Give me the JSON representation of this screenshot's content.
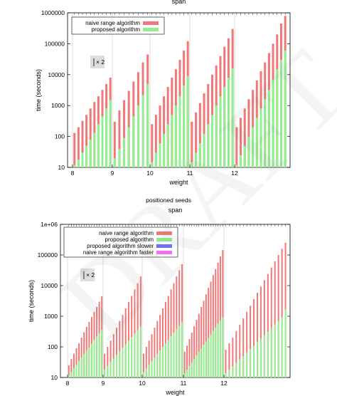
{
  "chart_data": [
    {
      "type": "bar",
      "title": "",
      "top_label": "span",
      "xlabel": "weight",
      "ylabel": "time (seconds)",
      "yscale": "log",
      "ylim": [
        10,
        1000000
      ],
      "yticks": [
        "10",
        "100",
        "1000",
        "10000",
        "100000",
        "1000000"
      ],
      "x_groups": [
        "8",
        "9",
        "10",
        "11",
        "12"
      ],
      "legend": {
        "placement": "top-left"
      },
      "annotation": "× 2",
      "series": [
        {
          "name": "naive range algorithm",
          "color": "#f07878",
          "groups": [
            [
              130,
              200,
              320,
              500,
              800,
              1300,
              2000,
              3200,
              5000,
              8000
            ],
            [
              300,
              700,
              1500,
              3000,
              6000,
              12000,
              25000,
              45000
            ],
            [
              250,
              500,
              1000,
              2000,
              4000,
              8000,
              15000,
              30000,
              60000,
              120000
            ],
            [
              300,
              600,
              1200,
              2500,
              5000,
              10000,
              20000,
              40000,
              80000,
              150000,
              300000
            ],
            [
              200,
              400,
              800,
              1600,
              3200,
              6500,
              13000,
              25000,
              50000,
              100000,
              200000,
              450000,
              800000
            ]
          ]
        },
        {
          "name": "proposed algorithm",
          "color": "#90f090",
          "groups": [
            [
              12,
              18,
              30,
              50,
              80,
              130,
              250,
              450,
              800,
              1500
            ],
            [
              20,
              40,
              90,
              200,
              450,
              1000,
              2200,
              5000
            ],
            [
              15,
              30,
              60,
              120,
              250,
              500,
              1000,
              2000,
              4500,
              9000
            ],
            [
              15,
              30,
              60,
              120,
              250,
              500,
              1000,
              2000,
              4000,
              8000,
              16000
            ],
            [
              12,
              25,
              50,
              100,
              200,
              400,
              800,
              1600,
              3200,
              7000,
              15000,
              30000,
              60000
            ]
          ]
        }
      ]
    },
    {
      "type": "bar",
      "title": "positioned seeds",
      "top_label": "span",
      "xlabel": "weight",
      "ylabel": "time (seconds)",
      "yscale": "log",
      "ylim": [
        10,
        1000000
      ],
      "yticks": [
        "10",
        "100",
        "1000",
        "10000",
        "100000",
        "1e+06"
      ],
      "x_groups": [
        "8",
        "9",
        "10",
        "11",
        "12"
      ],
      "legend": {
        "placement": "top-left"
      },
      "annotation": "× 2",
      "series": [
        {
          "name": "naive range algorithm",
          "color": "#f07878",
          "groups": [
            [
              25,
              40,
              60,
              90,
              130,
              200,
              300,
              450,
              650,
              950,
              1400,
              2000,
              3000,
              4500
            ],
            [
              60,
              100,
              160,
              260,
              420,
              700,
              1100,
              1800,
              2900,
              4600,
              7500,
              12000,
              20000
            ],
            [
              60,
              100,
              160,
              260,
              420,
              700,
              1100,
              1800,
              2900,
              4600,
              7500,
              12000,
              20000,
              32000,
              50000
            ],
            [
              70,
              110,
              180,
              290,
              470,
              760,
              1200,
              2000,
              3200,
              5200,
              8400,
              13500,
              22000,
              35000,
              56000,
              90000,
              145000
            ],
            [
              80,
              130,
              200,
              330,
              530,
              850,
              1400,
              2200,
              3600,
              5800,
              9300,
              15000,
              24000,
              39000,
              62000,
              100000,
              160000,
              250000
            ]
          ]
        },
        {
          "name": "proposed algorithm",
          "color": "#90f090",
          "groups": [
            [
              12,
              15,
              20,
              26,
              34,
              44,
              58,
              75,
              98,
              128,
              166,
              216,
              280,
              365
            ],
            [
              18,
              24,
              32,
              42,
              55,
              72,
              94,
              122,
              160,
              208,
              270,
              352,
              460
            ],
            [
              15,
              20,
              26,
              34,
              45,
              59,
              77,
              100,
              130,
              170,
              222,
              290,
              378,
              493,
              640
            ],
            [
              14,
              18,
              24,
              31,
              40,
              52,
              68,
              88,
              115,
              150,
              195,
              254,
              331,
              431,
              561,
              731,
              950
            ],
            [
              14,
              18,
              23,
              30,
              39,
              50,
              65,
              85,
              110,
              143,
              186,
              242,
              315,
              410,
              533,
              693,
              900,
              1700
            ]
          ]
        },
        {
          "name": "proposed algorithm slower",
          "color": "#7070f0",
          "groups": []
        },
        {
          "name": "naive range algorithm faster",
          "color": "#f070f0",
          "groups": []
        }
      ]
    }
  ],
  "separator_title": "positioned seeds",
  "watermark": "DRAFT"
}
